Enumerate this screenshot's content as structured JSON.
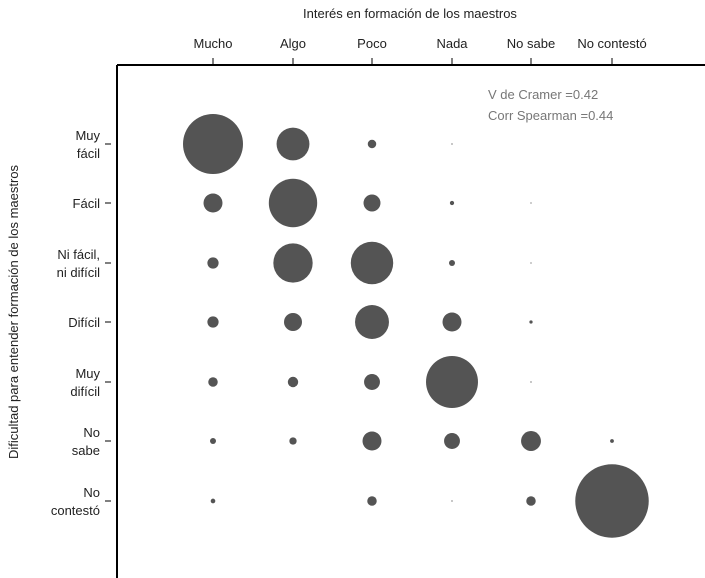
{
  "chart_data": {
    "type": "bubble",
    "xlabel": "Interés en formación de los maestros",
    "ylabel": "Dificultad para entender formación de los maestros",
    "x_categories": [
      "Mucho",
      "Algo",
      "Poco",
      "Nada",
      "No sabe",
      "No contestó"
    ],
    "y_categories": [
      [
        "Muy",
        "fácil"
      ],
      [
        "Fácil"
      ],
      [
        "Ni fácil,",
        "ni difícil"
      ],
      [
        "Difícil"
      ],
      [
        "Muy",
        "difícil"
      ],
      [
        "No",
        "sabe"
      ],
      [
        "No",
        "contestó"
      ]
    ],
    "annotations": [
      "V de Cramer =0.42",
      "Corr Spearman =0.44"
    ],
    "bubble_color": "#545454",
    "values": [
      [
        100,
        30,
        2,
        0.05,
        0,
        0
      ],
      [
        10,
        65,
        8,
        0.5,
        0.02,
        0
      ],
      [
        3.5,
        43,
        50,
        1,
        0.02,
        0
      ],
      [
        3.5,
        9,
        32,
        10,
        0.3,
        0
      ],
      [
        2.5,
        3,
        7,
        75,
        0.05,
        0
      ],
      [
        1,
        1.5,
        10,
        7,
        11,
        0.4
      ],
      [
        0.6,
        0,
        2.5,
        0.05,
        2.5,
        150
      ]
    ]
  }
}
